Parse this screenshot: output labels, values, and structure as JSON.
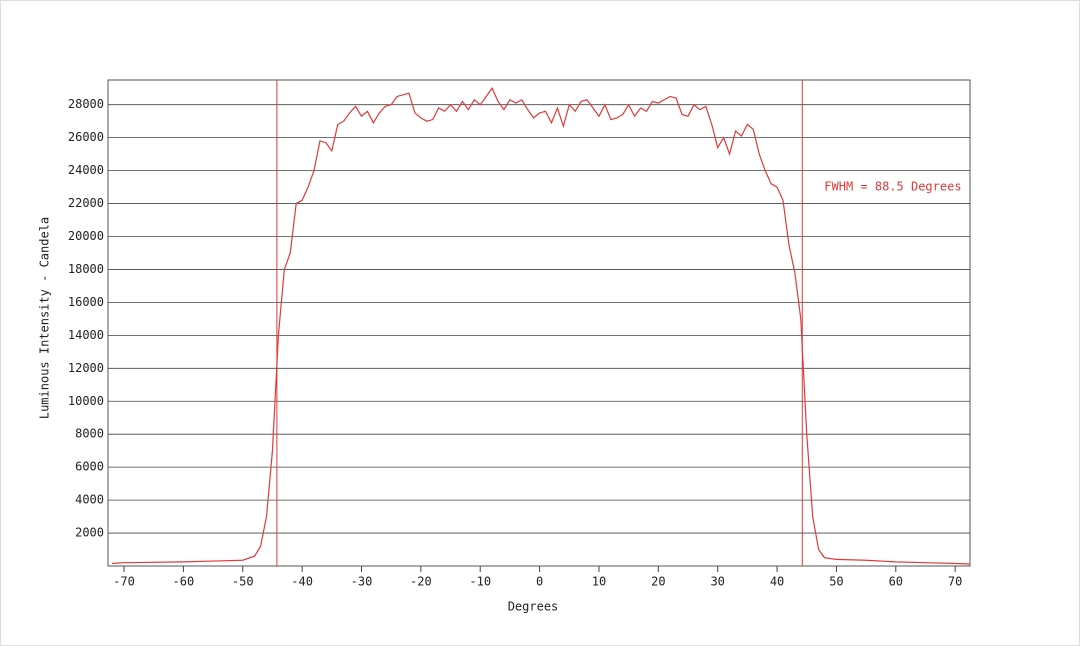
{
  "chart_data": {
    "type": "line",
    "xlabel": "Degrees",
    "ylabel": "Luminous Intensity - Candela",
    "annotation": "FWHM = 88.5 Degrees",
    "vlines": [
      -44.25,
      44.25
    ],
    "xlim": [
      -72.7,
      72.5
    ],
    "ylim": [
      0,
      29500
    ],
    "xticks": [
      -70,
      -60,
      -50,
      -40,
      -30,
      -20,
      -10,
      0,
      10,
      20,
      30,
      40,
      50,
      60,
      70
    ],
    "yticks": [
      2000,
      4000,
      6000,
      8000,
      10000,
      12000,
      14000,
      16000,
      18000,
      20000,
      22000,
      24000,
      26000,
      28000
    ],
    "grid": true,
    "series": [
      {
        "color": "#e03a3a",
        "x": [
          -72,
          -70,
          -60,
          -55,
          -50,
          -48,
          -47,
          -46,
          -45,
          -44,
          -43,
          -42,
          -41,
          -40,
          -39,
          -38,
          -37,
          -36,
          -35,
          -34,
          -33,
          -32,
          -31,
          -30,
          -29,
          -28,
          -27,
          -26,
          -25,
          -24,
          -23,
          -22,
          -21,
          -20,
          -19,
          -18,
          -17,
          -16,
          -15,
          -14,
          -13,
          -12,
          -11,
          -10,
          -9,
          -8,
          -7,
          -6,
          -5,
          -4,
          -3,
          -2,
          -1,
          0,
          1,
          2,
          3,
          4,
          5,
          6,
          7,
          8,
          9,
          10,
          11,
          12,
          13,
          14,
          15,
          16,
          17,
          18,
          19,
          20,
          21,
          22,
          23,
          24,
          25,
          26,
          27,
          28,
          29,
          30,
          31,
          32,
          33,
          34,
          35,
          36,
          37,
          38,
          39,
          40,
          41,
          42,
          43,
          44,
          45,
          46,
          47,
          48,
          50,
          55,
          60,
          65,
          70,
          72.5
        ],
        "values": [
          150,
          200,
          250,
          300,
          350,
          600,
          1200,
          3000,
          7000,
          14000,
          18000,
          19000,
          22000,
          22200,
          23000,
          24000,
          25800,
          25700,
          25200,
          26800,
          27000,
          27500,
          27900,
          27300,
          27600,
          26900,
          27500,
          27900,
          28000,
          28500,
          28600,
          28700,
          27500,
          27200,
          27000,
          27100,
          27800,
          27600,
          28000,
          27600,
          28200,
          27700,
          28300,
          28000,
          28500,
          29000,
          28200,
          27700,
          28300,
          28100,
          28300,
          27700,
          27200,
          27500,
          27600,
          26900,
          27800,
          26700,
          28000,
          27600,
          28200,
          28300,
          27800,
          27300,
          28000,
          27100,
          27200,
          27400,
          28000,
          27300,
          27800,
          27600,
          28200,
          28100,
          28300,
          28500,
          28400,
          27400,
          27300,
          28000,
          27700,
          27900,
          26800,
          25400,
          26000,
          25000,
          26400,
          26100,
          26800,
          26500,
          25000,
          24000,
          23200,
          23000,
          22200,
          19500,
          17800,
          15000,
          8000,
          3000,
          1000,
          500,
          400,
          350,
          250,
          200,
          150,
          120
        ]
      }
    ]
  }
}
